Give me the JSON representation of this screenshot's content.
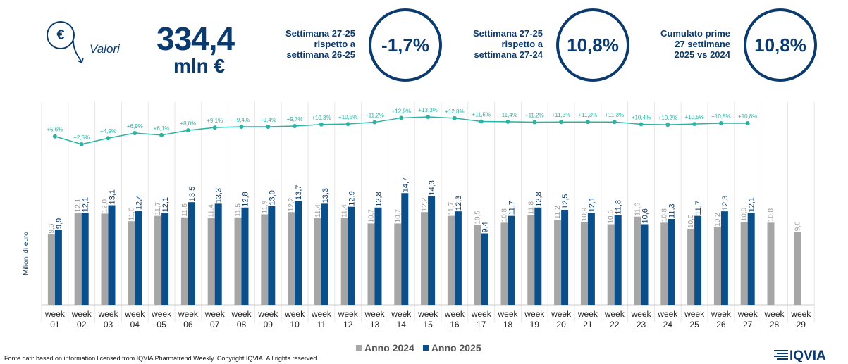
{
  "header": {
    "valori_icon": "€",
    "valori_label": "Valori",
    "total_value": "334,4",
    "total_unit": "mln €",
    "kpis": [
      {
        "lines": [
          "Settimana 27-25",
          "rispetto a",
          "settimana 26-25"
        ],
        "value": "-1,7%"
      },
      {
        "lines": [
          "Settimana 27-25",
          "rispetto a",
          "settimana 27-24"
        ],
        "value": "10,8%"
      },
      {
        "lines": [
          "Cumulato prime",
          "27 settimane",
          "2025 vs 2024"
        ],
        "value": "10,8%"
      }
    ]
  },
  "footer": {
    "source": "Fonte dati: based on information licensed from IQVIA Pharmatrend Weekly. Copyright IQVIA. All rights reserved.",
    "logo": "IQVIA"
  },
  "chart_data": {
    "type": "bar",
    "ylabel": "Milioni di euro",
    "categories": [
      [
        "week",
        "01"
      ],
      [
        "week",
        "02"
      ],
      [
        "week",
        "03"
      ],
      [
        "week",
        "04"
      ],
      [
        "week",
        "05"
      ],
      [
        "week",
        "06"
      ],
      [
        "week",
        "07"
      ],
      [
        "week",
        "08"
      ],
      [
        "week",
        "09"
      ],
      [
        "week",
        "10"
      ],
      [
        "week",
        "11"
      ],
      [
        "week",
        "12"
      ],
      [
        "week",
        "13"
      ],
      [
        "week",
        "14"
      ],
      [
        "week",
        "15"
      ],
      [
        "week",
        "16"
      ],
      [
        "week",
        "17"
      ],
      [
        "week",
        "18"
      ],
      [
        "week",
        "19"
      ],
      [
        "week",
        "20"
      ],
      [
        "week",
        "21"
      ],
      [
        "week",
        "22"
      ],
      [
        "week",
        "23"
      ],
      [
        "week",
        "24"
      ],
      [
        "week",
        "25"
      ],
      [
        "week",
        "26"
      ],
      [
        "week",
        "27"
      ],
      [
        "week",
        "28"
      ],
      [
        "week",
        "29"
      ]
    ],
    "series": [
      {
        "name": "Anno 2024",
        "color": "#a6a6a6",
        "values": [
          9.3,
          12.1,
          12.0,
          11.0,
          11.7,
          11.5,
          11.4,
          11.5,
          11.9,
          12.2,
          11.4,
          11.4,
          10.7,
          10.7,
          12.2,
          11.7,
          10.5,
          10.8,
          11.8,
          11.2,
          10.9,
          10.6,
          11.6,
          10.8,
          10.0,
          10.2,
          10.9,
          10.8,
          9.6
        ],
        "labels": [
          "9,3",
          "12,1",
          "12,0",
          "11,0",
          "11,7",
          "11,5",
          "11,4",
          "11,5",
          "11,9",
          "12,2",
          "11,4",
          "11,4",
          "10,7",
          "10,7",
          "12,2",
          "11,7",
          "10,5",
          "10,8",
          "11,8",
          "11,2",
          "10,9",
          "10,6",
          "11,6",
          "10,8",
          "10,0",
          "10,2",
          "10,9",
          "10,8",
          "9,6"
        ]
      },
      {
        "name": "Anno 2025",
        "color": "#0b4f8a",
        "values": [
          9.9,
          12.1,
          13.1,
          12.4,
          12.1,
          13.5,
          13.3,
          12.8,
          13.0,
          13.7,
          13.3,
          12.9,
          12.8,
          14.7,
          14.3,
          12.3,
          9.4,
          11.7,
          12.8,
          12.5,
          12.1,
          11.8,
          10.6,
          11.3,
          11.7,
          12.3,
          12.1,
          null,
          null
        ],
        "labels": [
          "9,9",
          "12,1",
          "13,1",
          "12,4",
          "12,1",
          "13,5",
          "13,3",
          "12,8",
          "13,0",
          "13,7",
          "13,3",
          "12,9",
          "12,8",
          "14,7",
          "14,3",
          "12,3",
          "9,4",
          "11,7",
          "12,8",
          "12,5",
          "12,1",
          "11,8",
          "10,6",
          "11,3",
          "11,7",
          "12,3",
          "12,1",
          "",
          ""
        ]
      }
    ],
    "cumulative_growth": {
      "color": "#2bb3a3",
      "values": [
        5.6,
        2.5,
        4.9,
        6.9,
        6.1,
        8.0,
        9.1,
        9.4,
        9.4,
        9.7,
        10.3,
        10.5,
        11.2,
        12.9,
        13.3,
        12.8,
        11.5,
        11.4,
        11.2,
        11.3,
        11.3,
        11.3,
        10.4,
        10.2,
        10.5,
        10.8,
        10.8
      ],
      "labels": [
        "+5,6%",
        "+2,5%",
        "+4,9%",
        "+6,9%",
        "+6,1%",
        "+8,0%",
        "+9,1%",
        "+9,4%",
        "+9,4%",
        "+9,7%",
        "+10,3%",
        "+10,5%",
        "+11,2%",
        "+12,9%",
        "+13,3%",
        "+12,8%",
        "+11,5%",
        "+11,4%",
        "+11,2%",
        "+11,3%",
        "+11,3%",
        "+11,3%",
        "+10,4%",
        "+10,2%",
        "+10,5%",
        "+10,8%",
        "+10,8%"
      ]
    },
    "legend": [
      {
        "name": "Anno 2024",
        "color": "#a6a6a6"
      },
      {
        "name": "Anno 2025",
        "color": "#0b4f8a"
      }
    ],
    "legend_position": "bottom"
  }
}
